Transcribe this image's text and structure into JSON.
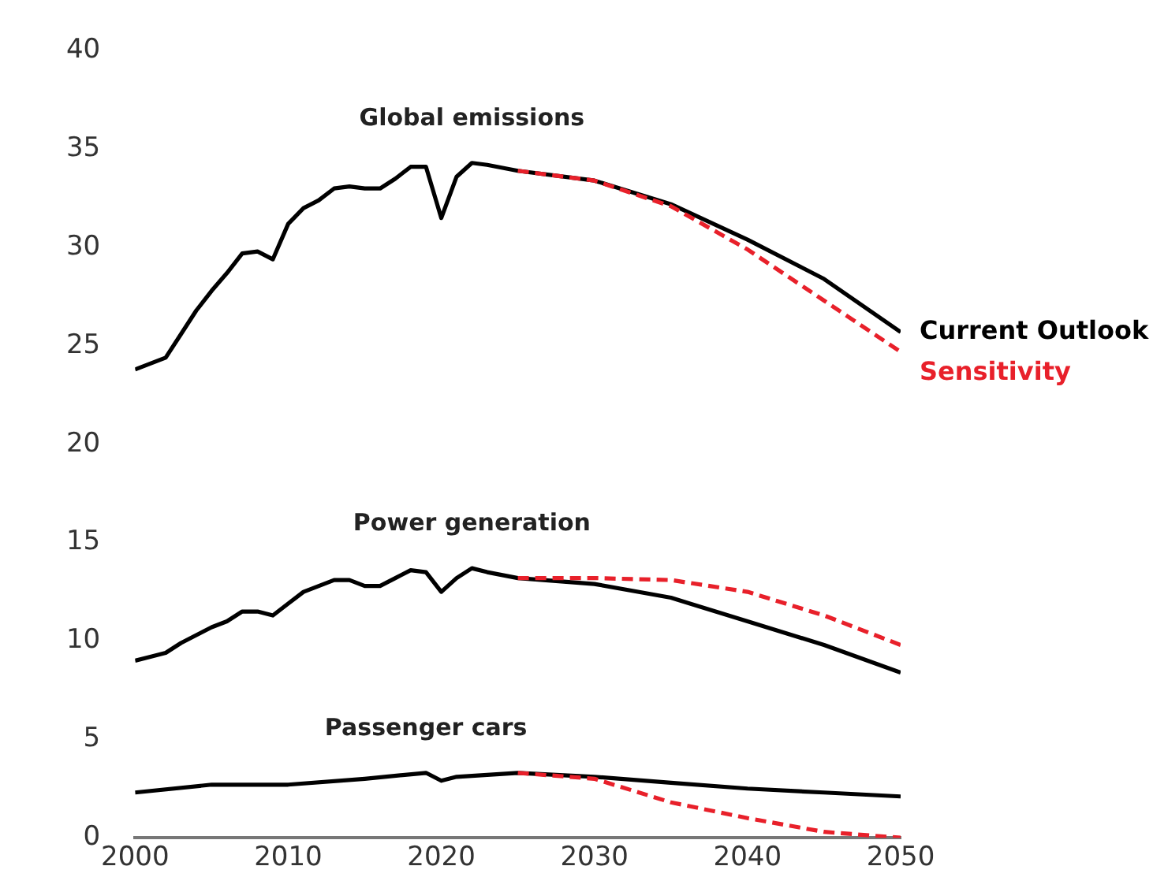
{
  "chart_data": {
    "type": "line",
    "xlim": [
      2000,
      2050
    ],
    "xticks": [
      2000,
      2010,
      2020,
      2030,
      2040,
      2050
    ],
    "ylim": [
      0,
      40
    ],
    "yticks": [
      0,
      5,
      10,
      15,
      20,
      25,
      30,
      35,
      40
    ],
    "grid": false,
    "legend": false,
    "marker": "none",
    "annotations": [
      "Global emissions",
      "Power generation",
      "Passenger cars"
    ],
    "series": [
      {
        "name": "Current Outlook",
        "color": "#000000",
        "line_style": "solid",
        "x": [
          2000,
          2001,
          2002,
          2003,
          2004,
          2005,
          2006,
          2007,
          2008,
          2009,
          2010,
          2011,
          2012,
          2013,
          2014,
          2015,
          2016,
          2017,
          2018,
          2019,
          2020,
          2021,
          2022,
          2023,
          2025,
          2030,
          2035,
          2040,
          2045,
          2050
        ],
        "values": [
          23.8,
          24.1,
          24.4,
          25.6,
          26.8,
          27.8,
          28.7,
          29.7,
          29.8,
          29.4,
          31.2,
          32.0,
          32.4,
          33.0,
          33.1,
          33.0,
          33.0,
          33.5,
          34.1,
          34.1,
          31.5,
          33.6,
          34.3,
          34.2,
          33.9,
          33.4,
          32.2,
          30.4,
          28.4,
          25.7
        ]
      },
      {
        "name": "Sensitivity",
        "color": "#e8202a",
        "line_style": "dashed",
        "x": [
          2025,
          2030,
          2035,
          2040,
          2045,
          2050
        ],
        "values": [
          33.9,
          33.4,
          32.1,
          29.9,
          27.3,
          24.7
        ]
      },
      {
        "color": "#000000",
        "line_style": "solid",
        "x": [
          2000,
          2001,
          2002,
          2003,
          2004,
          2005,
          2006,
          2007,
          2008,
          2009,
          2010,
          2011,
          2012,
          2013,
          2014,
          2015,
          2016,
          2017,
          2018,
          2019,
          2020,
          2021,
          2022,
          2023,
          2025,
          2030,
          2035,
          2040,
          2045,
          2050
        ],
        "values": [
          9.0,
          9.2,
          9.4,
          9.9,
          10.3,
          10.7,
          11.0,
          11.5,
          11.5,
          11.3,
          11.9,
          12.5,
          12.8,
          13.1,
          13.1,
          12.8,
          12.8,
          13.2,
          13.6,
          13.5,
          12.5,
          13.2,
          13.7,
          13.5,
          13.2,
          12.9,
          12.2,
          11.0,
          9.8,
          8.4
        ]
      },
      {
        "color": "#e8202a",
        "line_style": "dashed",
        "x": [
          2025,
          2030,
          2035,
          2040,
          2045,
          2050
        ],
        "values": [
          13.2,
          13.2,
          13.1,
          12.5,
          11.3,
          9.8
        ]
      },
      {
        "color": "#000000",
        "line_style": "solid",
        "x": [
          2000,
          2005,
          2010,
          2015,
          2019,
          2020,
          2021,
          2025,
          2030,
          2035,
          2040,
          2045,
          2050
        ],
        "values": [
          2.3,
          2.7,
          2.7,
          3.0,
          3.3,
          2.9,
          3.1,
          3.3,
          3.1,
          2.8,
          2.5,
          2.3,
          2.1
        ]
      },
      {
        "color": "#e8202a",
        "line_style": "dashed",
        "x": [
          2025,
          2030,
          2035,
          2040,
          2045,
          2050
        ],
        "values": [
          3.3,
          3.0,
          1.8,
          1.0,
          0.3,
          0.0
        ]
      }
    ]
  }
}
